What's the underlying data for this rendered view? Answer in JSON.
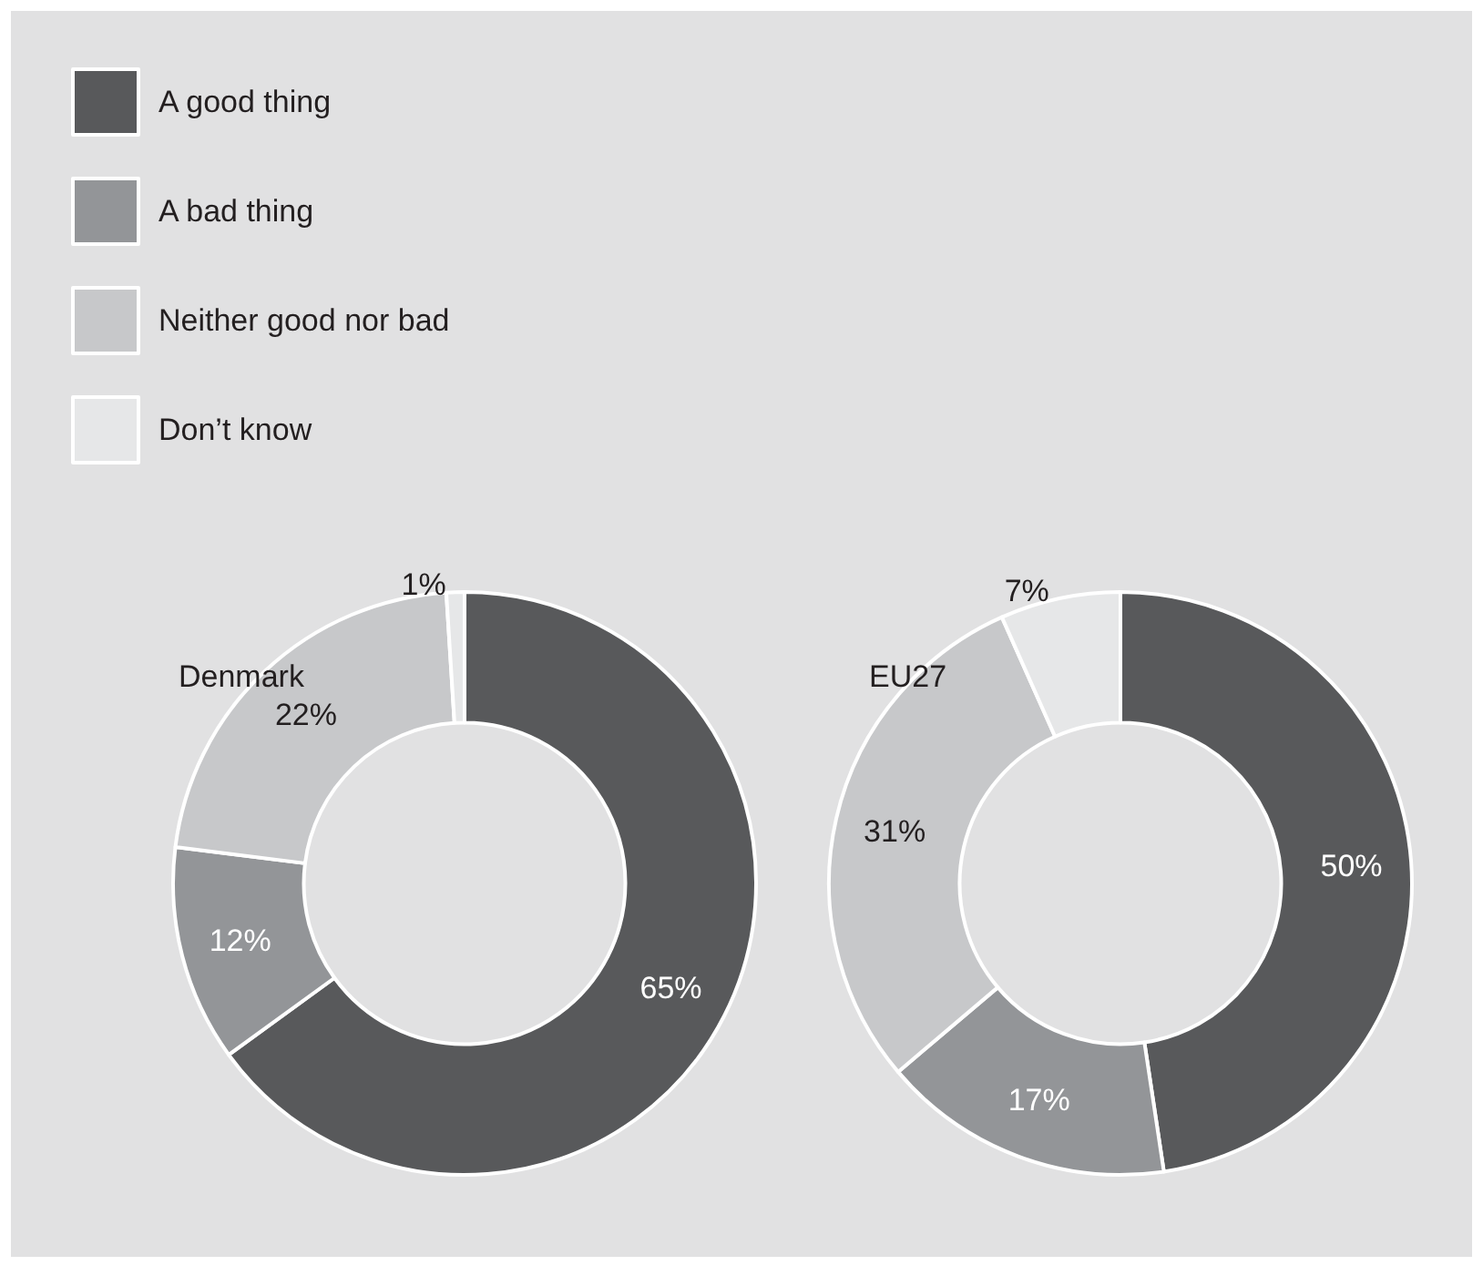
{
  "chart_data": {
    "type": "donut",
    "categories": [
      "A good thing",
      "A bad thing",
      "Neither good nor bad",
      "Don’t know"
    ],
    "legend": "top left",
    "series": [
      {
        "name": "Denmark",
        "values": [
          65,
          12,
          22,
          1
        ],
        "value_labels": [
          "65%",
          "12%",
          "22%",
          "1%"
        ],
        "colors": [
          "#58595b",
          "#939598",
          "#c7c8ca",
          "#e6e7e8"
        ]
      },
      {
        "name": "EU27",
        "values": [
          50,
          17,
          31,
          7
        ],
        "value_labels": [
          "50%",
          "17%",
          "31%",
          "7%"
        ],
        "colors": [
          "#58595b",
          "#939598",
          "#c7c8ca",
          "#e6e7e8"
        ]
      }
    ]
  }
}
